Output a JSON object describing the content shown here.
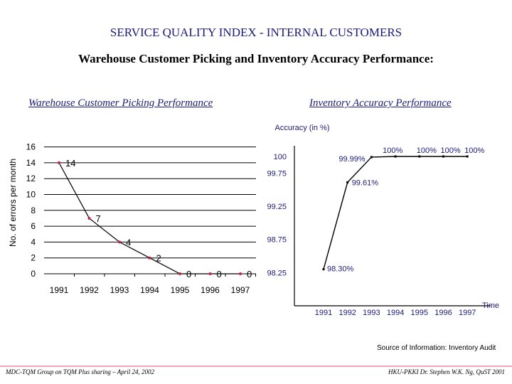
{
  "title": "SERVICE QUALITY INDEX - INTERNAL CUSTOMERS",
  "subtitle": "Warehouse Customer Picking and Inventory Accuracy Performance:",
  "headers": {
    "left": "Warehouse Customer Picking Performance",
    "right": "Inventory Accuracy Performance"
  },
  "source": "Source of Information: Inventory Audit",
  "footer": {
    "left": "MDC-TQM Group on TQM Plus sharing – April 24, 2002",
    "right": "HKU-PKKI  Dr. Stephen W.K. Ng, QuST 2001"
  },
  "colors": {
    "title": "#1a1a7a",
    "line": "#000000",
    "marker_left": "#cc2244",
    "marker_right": "#000000",
    "footer_rule": "#f0a8b8"
  },
  "chart_data": [
    {
      "type": "line",
      "title": "Warehouse Customer Picking Performance",
      "xlabel": "",
      "ylabel": "No. of errors per month",
      "categories": [
        "1991",
        "1992",
        "1993",
        "1994",
        "1995",
        "1996",
        "1997"
      ],
      "yticks": [
        "0",
        "2",
        "4",
        "6",
        "8",
        "10",
        "12",
        "14",
        "16"
      ],
      "ylim": [
        0,
        16
      ],
      "grid": true,
      "series": [
        {
          "name": "Errors",
          "values": [
            14,
            7,
            4,
            2,
            0,
            0,
            0
          ],
          "labels": [
            "14",
            "7",
            "4",
            "2",
            "0",
            "0",
            "0"
          ]
        }
      ]
    },
    {
      "type": "line",
      "title": "Accuracy (in %)",
      "xlabel": "Time",
      "ylabel": "",
      "categories": [
        "1991",
        "1992",
        "1993",
        "1994",
        "1995",
        "1996",
        "1997"
      ],
      "yticks": [
        "98.25",
        "98.75",
        "99.25",
        "99.75",
        "100"
      ],
      "ylim": [
        98.25,
        100.25
      ],
      "grid": false,
      "series": [
        {
          "name": "Accuracy",
          "values": [
            98.3,
            99.61,
            99.99,
            100,
            100,
            100,
            100
          ],
          "labels": [
            "98.30%",
            "99.61%",
            "99.99%",
            "100%",
            "100%",
            "100%",
            "100%"
          ]
        }
      ]
    }
  ]
}
